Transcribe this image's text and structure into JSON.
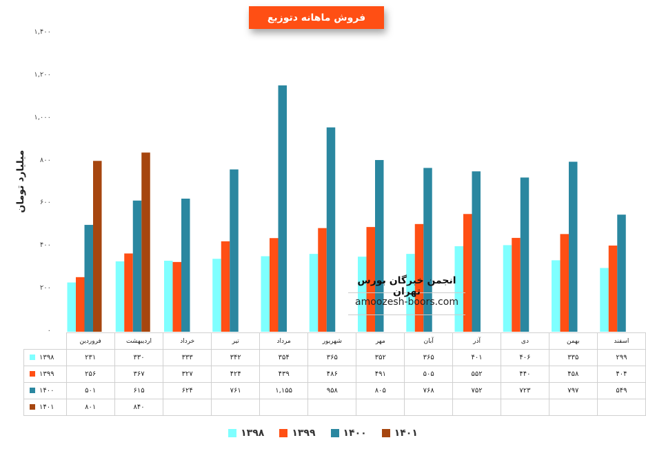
{
  "chart_data": {
    "type": "bar",
    "title": "فروش ماهانه دتوزیع",
    "ylabel": "میلیارد تومان",
    "ylim": [
      0,
      1400
    ],
    "yticks": [
      "۰",
      "۲۰۰",
      "۴۰۰",
      "۶۰۰",
      "۸۰۰",
      "۱,۰۰۰",
      "۱,۲۰۰",
      "۱,۴۰۰"
    ],
    "ytick_values": [
      0,
      200,
      400,
      600,
      800,
      1000,
      1200,
      1400
    ],
    "categories": [
      "فروردین",
      "اردیبهشت",
      "خرداد",
      "تیر",
      "مرداد",
      "شهریور",
      "مهر",
      "آبان",
      "آذر",
      "دی",
      "بهمن",
      "اسفند"
    ],
    "series": [
      {
        "name": "۱۳۹۸",
        "color": "#7FFFFF",
        "values": [
          231,
          330,
          333,
          342,
          354,
          365,
          352,
          365,
          401,
          406,
          335,
          299
        ],
        "labels": [
          "۲۳۱",
          "۳۳۰",
          "۳۳۳",
          "۳۴۲",
          "۳۵۴",
          "۳۶۵",
          "۳۵۲",
          "۳۶۵",
          "۴۰۱",
          "۴۰۶",
          "۳۳۵",
          "۲۹۹"
        ]
      },
      {
        "name": "۱۳۹۹",
        "color": "#FF4F14",
        "values": [
          256,
          367,
          327,
          424,
          439,
          486,
          491,
          505,
          552,
          440,
          458,
          404
        ],
        "labels": [
          "۲۵۶",
          "۳۶۷",
          "۳۲۷",
          "۴۲۴",
          "۴۳۹",
          "۴۸۶",
          "۴۹۱",
          "۵۰۵",
          "۵۵۲",
          "۴۴۰",
          "۴۵۸",
          "۴۰۴"
        ]
      },
      {
        "name": "۱۴۰۰",
        "color": "#2A87A0",
        "values": [
          501,
          615,
          624,
          761,
          1155,
          958,
          805,
          768,
          752,
          723,
          797,
          549
        ],
        "labels": [
          "۵۰۱",
          "۶۱۵",
          "۶۲۴",
          "۷۶۱",
          "۱,۱۵۵",
          "۹۵۸",
          "۸۰۵",
          "۷۶۸",
          "۷۵۲",
          "۷۲۳",
          "۷۹۷",
          "۵۴۹"
        ]
      },
      {
        "name": "۱۴۰۱",
        "color": "#A6460F",
        "values": [
          801,
          840,
          null,
          null,
          null,
          null,
          null,
          null,
          null,
          null,
          null,
          null
        ],
        "labels": [
          "۸۰۱",
          "۸۴۰",
          "",
          "",
          "",
          "",
          "",
          "",
          "",
          "",
          "",
          ""
        ]
      }
    ],
    "legend_position": "bottom",
    "grid": false,
    "data_table": true
  },
  "watermark": {
    "line1": "انجمن خبرگان بورس تهران",
    "line2": "amoozesh-boors.com"
  }
}
